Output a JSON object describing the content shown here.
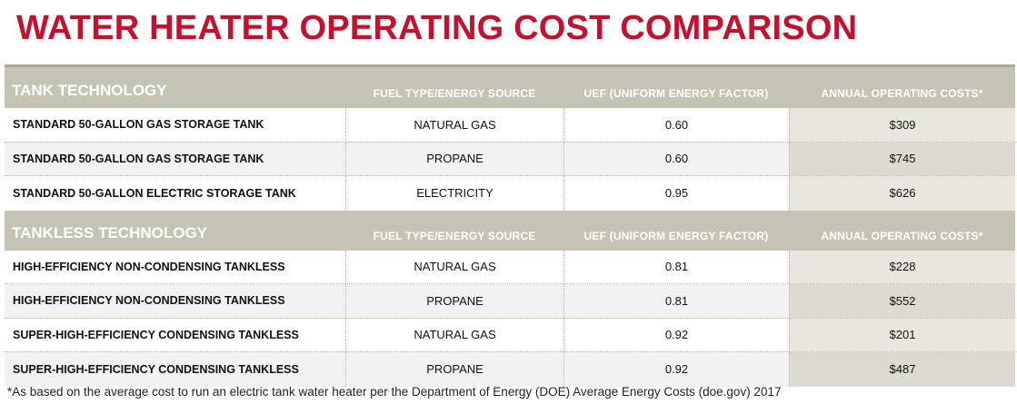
{
  "title": "WATER HEATER OPERATING COST COMPARISON",
  "sections": [
    {
      "headers": [
        "TANK TECHNOLOGY",
        "FUEL TYPE/ENERGY SOURCE",
        "UEF (UNIFORM ENERGY FACTOR)",
        "ANNUAL OPERATING COSTS*"
      ],
      "rows": [
        [
          "STANDARD 50-GALLON GAS STORAGE TANK",
          "NATURAL GAS",
          "0.60",
          "$309"
        ],
        [
          "STANDARD 50-GALLON GAS STORAGE TANK",
          "PROPANE",
          "0.60",
          "$745"
        ],
        [
          "STANDARD 50-GALLON ELECTRIC STORAGE TANK",
          "ELECTRICITY",
          "0.95",
          "$626"
        ]
      ]
    },
    {
      "headers": [
        "TANKLESS TECHNOLOGY",
        "FUEL TYPE/ENERGY SOURCE",
        "UEF (UNIFORM ENERGY FACTOR)",
        "ANNUAL OPERATING COSTS*"
      ],
      "rows": [
        [
          "HIGH-EFFICIENCY NON-CONDENSING TANKLESS",
          "NATURAL GAS",
          "0.81",
          "$228"
        ],
        [
          "HIGH-EFFICIENCY NON-CONDENSING TANKLESS",
          "PROPANE",
          "0.81",
          "$552"
        ],
        [
          "SUPER-HIGH-EFFICIENCY CONDENSING TANKLESS",
          "NATURAL GAS",
          "0.92",
          "$201"
        ],
        [
          "SUPER-HIGH-EFFICIENCY CONDENSING TANKLESS",
          "PROPANE",
          "0.92",
          "$487"
        ]
      ]
    }
  ],
  "footnote": "*As based on the average cost to run an electric tank water heater per the Department of Energy (DOE) Average Energy Costs (doe.gov) 2017",
  "colors": {
    "title": "#c8102e",
    "header_bg": "#c5c4b4",
    "header_text": "#ffffff",
    "alt_row": "#f2f2f2",
    "cost_col": "#e8e7df"
  }
}
